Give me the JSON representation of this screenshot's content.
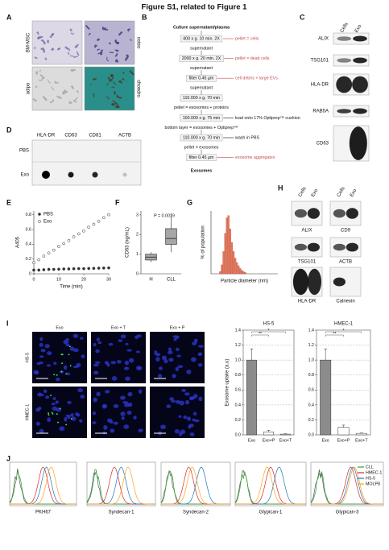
{
  "title": "Figure S1, related to Figure 1",
  "panel_letters": [
    "A",
    "B",
    "C",
    "D",
    "E",
    "F",
    "G",
    "H",
    "I",
    "J"
  ],
  "panel_a": {
    "row_labels": [
      "BM-MSC",
      "adipo"
    ],
    "side_labels": [
      "osteo",
      "chondro"
    ]
  },
  "panel_b": {
    "start": "Culture supernatant/plasma",
    "steps": [
      {
        "box": "400 x g. 10 min. 2X",
        "removed": "pellet = cells",
        "below": "supernatant"
      },
      {
        "box": "2000 x g. 20 min. 2X",
        "removed": "pellet = dead cells",
        "below": "supernatant"
      },
      {
        "box": "filter 0.45 µm",
        "removed": "cell debris + large EVs",
        "below": "supernatant"
      },
      {
        "box": "110.000 x g. 70 min",
        "below": "pellet = exosomes + proteins"
      },
      {
        "box": "100.000 x g. 75 min",
        "note": "load onto 17% Optiprep™ cushion",
        "below": "bottom layer = exosomes + Optiprep™"
      },
      {
        "box": "110.000 x g. 70 min",
        "note": "wash in PBS",
        "below": "pellet = exosomes"
      },
      {
        "box": "filter 0.45 µm",
        "removed": "exosome aggregates"
      }
    ],
    "end": "Exosomes"
  },
  "panel_c": {
    "columns": [
      "Cells",
      "Exo"
    ],
    "rows": [
      "ALIX",
      "TSG101",
      "HLA-DR",
      "RAB5A",
      "CD63"
    ]
  },
  "panel_d": {
    "columns": [
      "HLA-DR",
      "CD63",
      "CD81",
      "ACTB"
    ],
    "rows": [
      "PBS",
      "Exo"
    ]
  },
  "panel_h": {
    "columns": [
      "Cells",
      "Exo"
    ],
    "blots": [
      "ALIX",
      "CD9",
      "TSG101",
      "ACTB",
      "HLA-DR",
      "Calnexin"
    ]
  },
  "panel_i": {
    "columns": [
      "Exo",
      "Exo + T",
      "Exo + P"
    ],
    "rows": [
      "HS-5",
      "HMEC-1"
    ]
  },
  "panel_j": {
    "panels": [
      "PKH67",
      "Syndecan-1",
      "Syndecan-2",
      "Glypican-1",
      "Glypican-3"
    ],
    "legend": [
      {
        "name": "CLL",
        "color": "#2ca02c"
      },
      {
        "name": "HMEC-1",
        "color": "#d62728"
      },
      {
        "name": "HS-5",
        "color": "#1f77b4"
      },
      {
        "name": "MOLP8",
        "color": "#ff9f1c"
      }
    ]
  },
  "chart_data": [
    {
      "type": "line",
      "ylabel": "A405",
      "xlabel": "Time (min)",
      "legend": "upper left",
      "x": [
        0,
        2,
        4,
        6,
        8,
        10,
        12,
        14,
        16,
        18,
        20,
        22,
        24,
        26,
        28,
        30
      ],
      "series": [
        {
          "name": "PBS",
          "marker": "filled",
          "color": "#333333",
          "values": [
            0.05,
            0.05,
            0.055,
            0.06,
            0.06,
            0.062,
            0.065,
            0.066,
            0.068,
            0.07,
            0.07,
            0.072,
            0.074,
            0.076,
            0.078,
            0.08
          ]
        },
        {
          "name": "Exo",
          "marker": "open",
          "color": "#333333",
          "values": [
            0.15,
            0.19,
            0.24,
            0.28,
            0.32,
            0.37,
            0.41,
            0.45,
            0.5,
            0.54,
            0.58,
            0.63,
            0.67,
            0.71,
            0.76,
            0.8
          ]
        }
      ],
      "xlim": [
        0,
        30
      ],
      "xticks": [
        0,
        10,
        20,
        30
      ],
      "ylim": [
        0,
        0.85
      ],
      "yticks": [
        0,
        0.2,
        0.4,
        0.6,
        0.8
      ]
    },
    {
      "type": "box",
      "ylabel": "CD63 (ng/mL)",
      "annotation": "P = 0.0019",
      "categories": [
        "H",
        "CLL"
      ],
      "boxes": [
        {
          "min": 0.6,
          "q1": 0.7,
          "median": 0.85,
          "q3": 1.0,
          "max": 1.1
        },
        {
          "min": 1.1,
          "q1": 1.5,
          "median": 1.8,
          "q3": 2.3,
          "max": 3.1
        }
      ],
      "color": "#a6a6a6",
      "ylim": [
        0,
        3.2
      ],
      "yticks": [
        0,
        1,
        2,
        3
      ]
    },
    {
      "type": "histogram",
      "ylabel": "% of population",
      "xlabel": "Particle diameter (nm)",
      "bins": [
        50,
        60,
        70,
        80,
        90,
        100,
        110,
        120,
        130,
        140,
        150,
        160,
        170,
        180,
        190,
        200,
        210
      ],
      "values": [
        0.5,
        2,
        5,
        9,
        12.5,
        13,
        10,
        7,
        5,
        3.5,
        2.5,
        1.8,
        1.2,
        0.8,
        0.5,
        0.3
      ],
      "color": "#e07a5f",
      "xlim": [
        0,
        400
      ],
      "ylim": [
        0,
        14
      ]
    },
    {
      "type": "bar",
      "title": "HS-5",
      "ylabel": "Exosome uptake (a.u)",
      "categories": [
        "Exo",
        "Exo+P",
        "Exo+T"
      ],
      "values": [
        1.0,
        0.04,
        0.01
      ],
      "errors": [
        0.15,
        0.02,
        0.005
      ],
      "colors": [
        "#8c8c8c",
        "#ffffff",
        "#ffffff"
      ],
      "annotations": [
        "**",
        "*"
      ],
      "grid": true,
      "ylim": [
        0,
        1.4
      ],
      "yticks": [
        {
          "value": 0,
          "label": "0.0"
        },
        0.2,
        0.4,
        0.6,
        0.8,
        {
          "value": 1,
          "label": "1.0"
        },
        1.2,
        1.4
      ]
    },
    {
      "type": "bar",
      "title": "HMEC-1",
      "categories": [
        "Exo",
        "Exo+P",
        "Exo+T"
      ],
      "values": [
        1.0,
        0.1,
        0.02
      ],
      "errors": [
        0.15,
        0.03,
        0.005
      ],
      "colors": [
        "#8c8c8c",
        "#ffffff",
        "#ffffff"
      ],
      "annotations": [
        "**",
        "*"
      ],
      "grid": true,
      "ylim": [
        0,
        1.4
      ],
      "yticks": [
        {
          "value": 0,
          "label": "0.0"
        },
        0.2,
        0.4,
        0.6,
        0.8,
        {
          "value": 1,
          "label": "1.0"
        },
        1.2,
        1.4
      ]
    }
  ]
}
